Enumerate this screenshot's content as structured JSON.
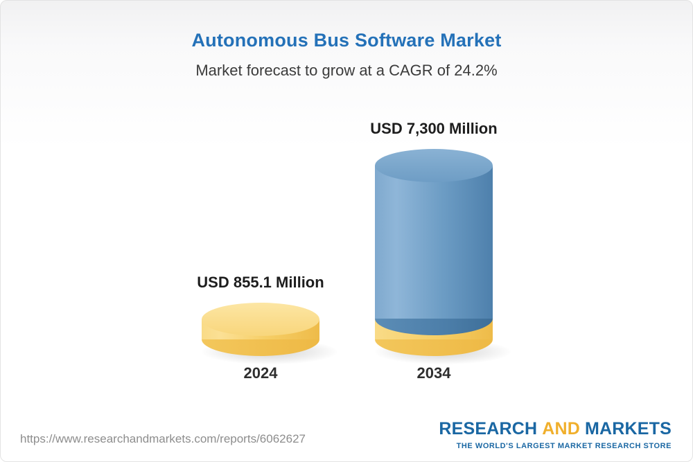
{
  "header": {
    "title": "Autonomous Bus Software Market",
    "subtitle": "Market forecast to grow at a CAGR of 24.2%"
  },
  "chart_data": {
    "type": "bar",
    "style": "3d-cylinder",
    "title": "Autonomous Bus Software Market",
    "subtitle": "Market forecast to grow at a CAGR of 24.2%",
    "unit": "USD Million",
    "cagr_percent": 24.2,
    "categories": [
      "2024",
      "2034"
    ],
    "values": [
      855.1,
      7300
    ],
    "bars": [
      {
        "category": "2024",
        "value": 855.1,
        "value_label": "USD 855.1 Million",
        "color": "#F5CB62"
      },
      {
        "category": "2034",
        "value": 7300,
        "value_label": "USD 7,300 Million",
        "color": "#5E91BC",
        "base_color": "#F5CB62"
      }
    ],
    "legend": "none",
    "grid": false
  },
  "footer": {
    "url": "https://www.researchandmarkets.com/reports/6062627",
    "logo": {
      "word1": "RESEARCH",
      "word2": "AND",
      "word3": "MARKETS",
      "tagline": "THE WORLD'S LARGEST MARKET RESEARCH STORE"
    }
  },
  "colors": {
    "title_blue": "#2471B8",
    "bar_gold": "#F5CB62",
    "bar_blue": "#5E91BC",
    "logo_blue": "#1A67A3",
    "logo_gold": "#F0AF2C"
  }
}
